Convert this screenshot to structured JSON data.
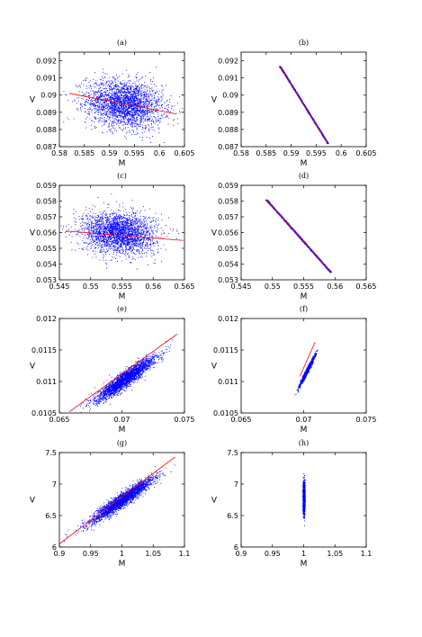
{
  "chart_data": [
    {
      "panel": "a",
      "type": "scatter",
      "title": "(a)",
      "xlabel": "M",
      "ylabel": "V",
      "xlim": [
        0.58,
        0.605
      ],
      "ylim": [
        0.087,
        0.0925
      ],
      "xticks": [
        "0.58",
        "0.585",
        "0.59",
        "0.595",
        "0.6",
        "0.605"
      ],
      "yticks": [
        "0.087",
        "0.088",
        "0.089",
        "0.09",
        "0.091",
        "0.092"
      ],
      "cloud": {
        "cx": 0.593,
        "cy": 0.0895,
        "sx": 0.0038,
        "sy": 0.0007,
        "rho": -0.18,
        "n": 2600
      },
      "fit_line": [
        [
          0.582,
          0.0901
        ],
        [
          0.6035,
          0.0889
        ]
      ],
      "point_color": "#0000ff",
      "line_color": "#ff0000"
    },
    {
      "panel": "b",
      "type": "scatter",
      "title": "(b)",
      "xlabel": "M",
      "ylabel": "V",
      "xlim": [
        0.58,
        0.605
      ],
      "ylim": [
        0.087,
        0.0925
      ],
      "xticks": [
        "0.58",
        "0.585",
        "0.59",
        "0.595",
        "0.6",
        "0.605"
      ],
      "yticks": [
        "0.087",
        "0.088",
        "0.089",
        "0.09",
        "0.091",
        "0.092"
      ],
      "segment": {
        "start": [
          0.5877,
          0.0917
        ],
        "end": [
          0.5973,
          0.0872
        ],
        "width": 6e-05,
        "n": 1500
      },
      "fit_line": [
        [
          0.5877,
          0.0917
        ],
        [
          0.5973,
          0.0872
        ]
      ],
      "point_color": "#0000ff",
      "line_color": "#ff0000"
    },
    {
      "panel": "c",
      "type": "scatter",
      "title": "(c)",
      "xlabel": "M",
      "ylabel": "V",
      "xlim": [
        0.545,
        0.565
      ],
      "ylim": [
        0.053,
        0.059
      ],
      "xticks": [
        "0.545",
        "0.55",
        "0.555",
        "0.56",
        "0.565"
      ],
      "yticks": [
        "0.053",
        "0.054",
        "0.055",
        "0.056",
        "0.057",
        "0.058",
        "0.059"
      ],
      "cloud": {
        "cx": 0.5545,
        "cy": 0.056,
        "sx": 0.0029,
        "sy": 0.00065,
        "rho": -0.12,
        "n": 2600
      },
      "fit_line": [
        [
          0.546,
          0.0561
        ],
        [
          0.5648,
          0.0555
        ]
      ],
      "point_color": "#0000ff",
      "line_color": "#ff0000"
    },
    {
      "panel": "d",
      "type": "scatter",
      "title": "(d)",
      "xlabel": "M",
      "ylabel": "V",
      "xlim": [
        0.545,
        0.565
      ],
      "ylim": [
        0.053,
        0.059
      ],
      "xticks": [
        "0.545",
        "0.55",
        "0.555",
        "0.56",
        "0.565"
      ],
      "yticks": [
        "0.053",
        "0.054",
        "0.055",
        "0.056",
        "0.057",
        "0.058",
        "0.059"
      ],
      "segment": {
        "start": [
          0.549,
          0.0581
        ],
        "end": [
          0.5593,
          0.0535
        ],
        "width": 6e-05,
        "n": 1500
      },
      "fit_line": [
        [
          0.549,
          0.0581
        ],
        [
          0.5593,
          0.0535
        ]
      ],
      "point_color": "#0000ff",
      "line_color": "#ff0000"
    },
    {
      "panel": "e",
      "type": "scatter",
      "title": "(e)",
      "xlabel": "M",
      "ylabel": "V",
      "xlim": [
        0.065,
        0.075
      ],
      "ylim": [
        0.0105,
        0.012
      ],
      "xticks": [
        "0.065",
        "0.07",
        "0.075"
      ],
      "yticks": [
        "0.0105",
        "0.011",
        "0.0115",
        "0.012"
      ],
      "cloud": {
        "cx": 0.0703,
        "cy": 0.01105,
        "sx": 0.00115,
        "sy": 0.00017,
        "rho": 0.93,
        "n": 2600
      },
      "fit_line": [
        [
          0.0658,
          0.01052
        ],
        [
          0.0744,
          0.01175
        ]
      ],
      "point_color": "#0000ff",
      "line_color": "#ff0000"
    },
    {
      "panel": "f",
      "type": "scatter",
      "title": "(f)",
      "xlabel": "M",
      "ylabel": "V",
      "xlim": [
        0.065,
        0.075
      ],
      "ylim": [
        0.0105,
        0.012
      ],
      "xticks": [
        "0.065",
        "0.07",
        "0.075"
      ],
      "yticks": [
        "0.0105",
        "0.011",
        "0.0115",
        "0.012"
      ],
      "cloud": {
        "cx": 0.07025,
        "cy": 0.01117,
        "sx": 0.00028,
        "sy": 0.00011,
        "rho": 0.98,
        "n": 1500
      },
      "fit_line": [
        [
          0.0697,
          0.01108
        ],
        [
          0.0709,
          0.01162
        ]
      ],
      "point_color": "#0000ff",
      "line_color": "#ff0000"
    },
    {
      "panel": "g",
      "type": "scatter",
      "title": "(g)",
      "xlabel": "M",
      "ylabel": "V",
      "xlim": [
        0.9,
        1.1
      ],
      "ylim": [
        6,
        7.5
      ],
      "xticks": [
        "0.9",
        "0.95",
        "1",
        "1.05",
        "1.1"
      ],
      "yticks": [
        "6",
        "6.5",
        "7",
        "7.5"
      ],
      "cloud": {
        "cx": 1.0,
        "cy": 6.75,
        "sx": 0.025,
        "sy": 0.18,
        "rho": 0.95,
        "n": 2600
      },
      "fit_line": [
        [
          0.9,
          6.05
        ],
        [
          1.085,
          7.43
        ]
      ],
      "point_color": "#0000ff",
      "line_color": "#ff0000"
    },
    {
      "panel": "h",
      "type": "scatter",
      "title": "(h)",
      "xlabel": "M",
      "ylabel": "V",
      "xlim": [
        0.9,
        1.1
      ],
      "ylim": [
        6,
        7.5
      ],
      "xticks": [
        "0.9",
        "0.95",
        "1",
        "1.05",
        "1.1"
      ],
      "yticks": [
        "6",
        "6.5",
        "7",
        "7.5"
      ],
      "cloud": {
        "cx": 1.0,
        "cy": 6.78,
        "sx": 0.0008,
        "sy": 0.12,
        "rho": 0.0,
        "n": 1500
      },
      "point_color": "#0000ff",
      "line_color": "#ff0000"
    }
  ]
}
